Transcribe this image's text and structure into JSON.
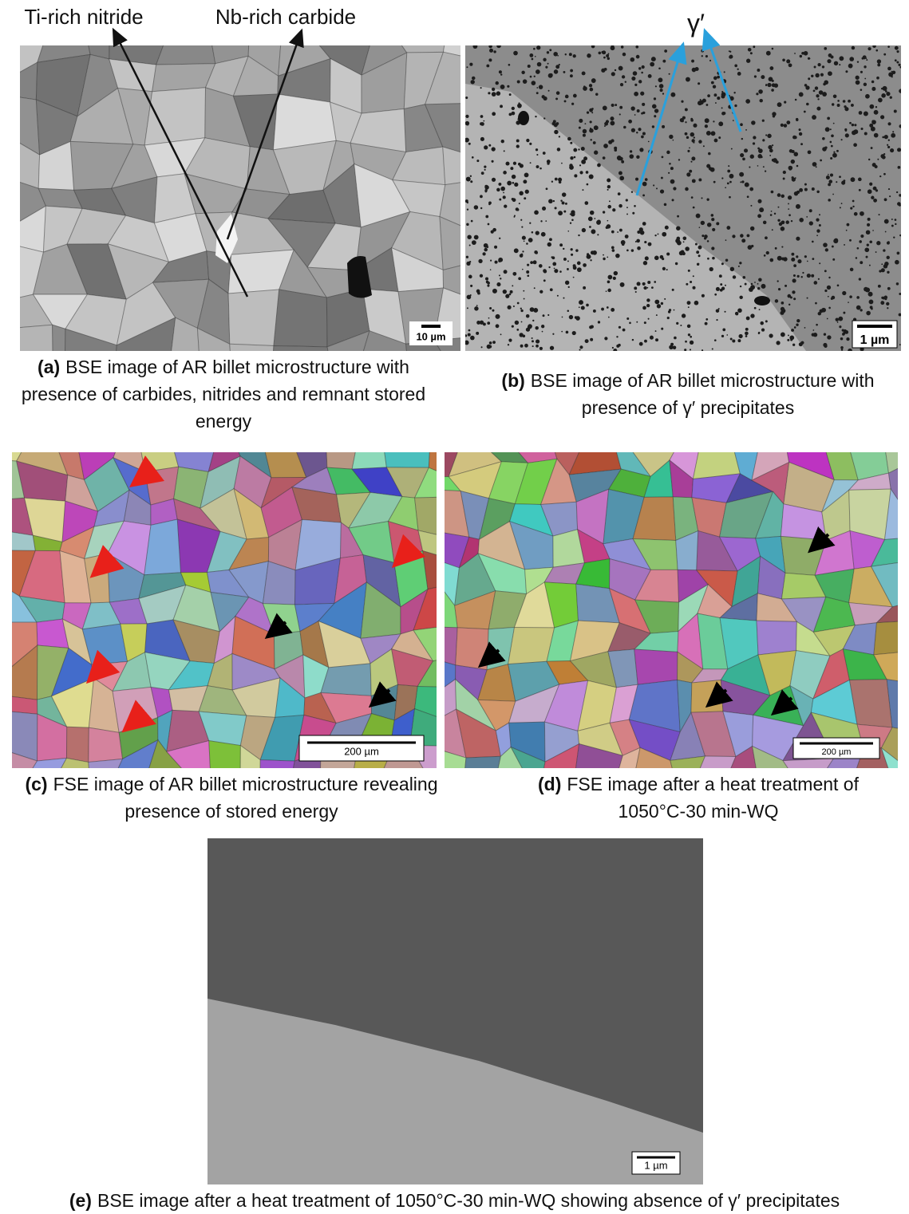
{
  "annotations": {
    "ti_rich": "Ti-rich nitride",
    "nb_rich": "Nb-rich carbide",
    "gamma": "γ′"
  },
  "panels": [
    {
      "id": "(a)",
      "caption": "BSE image of AR billet microstructure with presence of carbides, nitrides and remnant stored energy",
      "scale_bar": "10 µm"
    },
    {
      "id": "(b)",
      "caption": "BSE image of AR billet microstructure with presence of γ′ precipitates",
      "scale_bar": "1 µm"
    },
    {
      "id": "(c)",
      "caption": "FSE image of AR billet microstructure revealing presence of stored energy",
      "scale_bar": "200 µm"
    },
    {
      "id": "(d)",
      "caption": "FSE image after a heat treatment of 1050°C-30 min-WQ",
      "scale_bar": "200 µm"
    },
    {
      "id": "(e)",
      "caption": "BSE image after a heat treatment of 1050°C-30 min-WQ showing absence of γ′ precipitates",
      "scale_bar": "1 µm"
    }
  ]
}
